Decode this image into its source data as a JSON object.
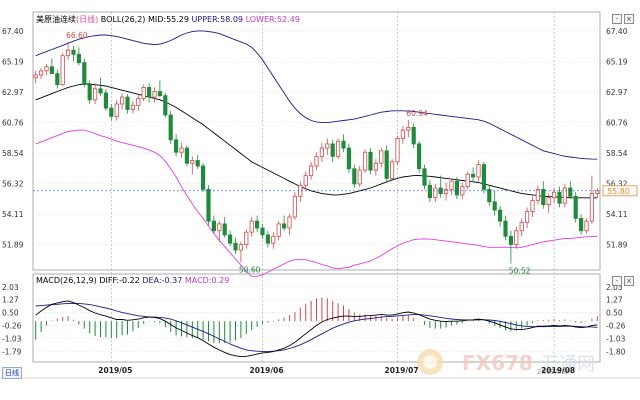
{
  "header": {
    "instrument": "美原油连续",
    "period": "(日线)",
    "indicator": "BOLL(26,2)",
    "mid": "MID:55.29",
    "upper": "UPPER:58.09",
    "lower": "LOWER:52.49"
  },
  "macd_header": {
    "indicator": "MACD(26,12,9)",
    "diff": "DIFF:-0.22",
    "dea": "DEA:-0.37",
    "macd": "MACD:0.29"
  },
  "controls": {
    "minus": "-",
    "close": "×",
    "period_button": "日线"
  },
  "current_price": "55.80",
  "watermark": {
    "brand": "FX678",
    "brand_cn": "汇通网",
    "date": "2019/08/"
  },
  "colors": {
    "up": "#d24a4a",
    "down": "#1e8a3a",
    "mid": "#000000",
    "upper": "#1a1a8c",
    "lower": "#e23ee2",
    "diff": "#000000",
    "dea": "#1a1a8c",
    "grid": "#b8b8b8"
  },
  "chart_data": {
    "type": "candlestick",
    "price_axis_ticks": [
      "67.40",
      "65.19",
      "62.97",
      "60.76",
      "58.54",
      "56.32",
      "54.11",
      "51.89"
    ],
    "macd_axis_ticks": [
      "2.03",
      "1.27",
      "0.50",
      "-0.26",
      "-1.03",
      "-1.79"
    ],
    "macd_axis_right": [
      "2.03",
      "1.27",
      "0.50",
      "-0.26",
      "-1.03",
      "-1.80"
    ],
    "x_labels": [
      "2019/05",
      "2019/06",
      "2019/07",
      "2019/08"
    ],
    "price_ylim": [
      50.2,
      67.9
    ],
    "macd_ylim": [
      -2.3,
      2.2
    ],
    "annotations": [
      {
        "text": "66.60",
        "index": 6,
        "price": 66.6,
        "pos": "above"
      },
      {
        "text": "50.60",
        "index": 38,
        "price": 50.6,
        "pos": "below"
      },
      {
        "text": "60.94",
        "index": 69,
        "price": 60.94,
        "pos": "above"
      },
      {
        "text": "50.52",
        "index": 88,
        "price": 50.52,
        "pos": "below"
      }
    ],
    "candles": [
      [
        64.0,
        64.5,
        63.6,
        64.2
      ],
      [
        64.2,
        64.7,
        63.9,
        64.5
      ],
      [
        64.5,
        65.0,
        64.2,
        64.8
      ],
      [
        64.8,
        65.4,
        64.4,
        64.3
      ],
      [
        64.3,
        64.6,
        63.2,
        63.5
      ],
      [
        63.5,
        65.8,
        63.4,
        65.6
      ],
      [
        65.6,
        66.6,
        65.3,
        66.0
      ],
      [
        66.0,
        66.3,
        65.2,
        65.7
      ],
      [
        65.7,
        66.2,
        64.9,
        65.1
      ],
      [
        65.1,
        65.4,
        63.3,
        63.5
      ],
      [
        63.5,
        63.8,
        62.1,
        62.4
      ],
      [
        62.4,
        63.6,
        62.1,
        63.2
      ],
      [
        63.2,
        64.0,
        62.7,
        62.9
      ],
      [
        62.9,
        63.2,
        61.6,
        61.8
      ],
      [
        61.8,
        62.1,
        60.9,
        61.2
      ],
      [
        61.2,
        62.4,
        60.9,
        62.1
      ],
      [
        62.1,
        62.9,
        61.7,
        62.6
      ],
      [
        62.6,
        62.8,
        61.4,
        61.7
      ],
      [
        61.7,
        62.3,
        61.4,
        62.0
      ],
      [
        62.0,
        62.8,
        61.6,
        62.5
      ],
      [
        62.5,
        63.5,
        62.3,
        63.3
      ],
      [
        63.3,
        63.6,
        62.2,
        62.6
      ],
      [
        62.6,
        63.3,
        62.2,
        63.0
      ],
      [
        63.0,
        63.8,
        62.6,
        62.7
      ],
      [
        62.7,
        62.9,
        61.1,
        61.3
      ],
      [
        61.3,
        61.6,
        59.2,
        59.5
      ],
      [
        59.5,
        59.9,
        58.3,
        58.6
      ],
      [
        58.6,
        59.3,
        58.2,
        58.9
      ],
      [
        58.9,
        59.1,
        57.6,
        57.8
      ],
      [
        57.8,
        58.3,
        57.0,
        58.0
      ],
      [
        58.0,
        58.4,
        57.4,
        57.6
      ],
      [
        57.6,
        57.8,
        55.7,
        55.9
      ],
      [
        55.9,
        56.2,
        53.3,
        53.6
      ],
      [
        53.6,
        54.0,
        52.7,
        52.9
      ],
      [
        52.9,
        53.6,
        52.1,
        53.4
      ],
      [
        53.4,
        53.9,
        52.4,
        52.6
      ],
      [
        52.6,
        52.9,
        51.8,
        52.0
      ],
      [
        52.0,
        52.4,
        51.2,
        51.5
      ],
      [
        51.5,
        52.1,
        50.6,
        51.9
      ],
      [
        51.9,
        53.0,
        51.6,
        52.8
      ],
      [
        52.8,
        53.9,
        52.5,
        53.6
      ],
      [
        53.6,
        54.0,
        52.8,
        53.1
      ],
      [
        53.1,
        53.4,
        52.3,
        52.6
      ],
      [
        52.6,
        52.9,
        51.7,
        52.0
      ],
      [
        52.0,
        52.8,
        51.6,
        52.5
      ],
      [
        52.5,
        53.6,
        52.2,
        53.4
      ],
      [
        53.4,
        54.0,
        52.9,
        53.1
      ],
      [
        53.1,
        54.1,
        52.6,
        53.9
      ],
      [
        53.9,
        55.7,
        53.7,
        55.4
      ],
      [
        55.4,
        56.5,
        55.0,
        56.2
      ],
      [
        56.2,
        57.2,
        55.9,
        56.9
      ],
      [
        56.9,
        57.9,
        56.6,
        57.6
      ],
      [
        57.6,
        58.6,
        57.3,
        58.3
      ],
      [
        58.3,
        59.3,
        57.9,
        58.9
      ],
      [
        58.9,
        59.6,
        58.4,
        59.2
      ],
      [
        59.2,
        59.5,
        57.9,
        58.3
      ],
      [
        58.3,
        59.6,
        58.1,
        59.4
      ],
      [
        59.4,
        59.9,
        58.6,
        58.9
      ],
      [
        58.9,
        59.2,
        57.1,
        57.4
      ],
      [
        57.4,
        57.7,
        56.0,
        56.3
      ],
      [
        56.3,
        57.6,
        56.1,
        57.3
      ],
      [
        57.3,
        58.8,
        57.1,
        58.6
      ],
      [
        58.6,
        58.9,
        57.0,
        57.3
      ],
      [
        57.3,
        58.1,
        56.9,
        57.8
      ],
      [
        57.8,
        58.9,
        57.5,
        58.7
      ],
      [
        58.7,
        59.1,
        56.4,
        56.7
      ],
      [
        56.7,
        58.1,
        56.5,
        57.9
      ],
      [
        57.9,
        59.8,
        57.7,
        59.6
      ],
      [
        59.6,
        60.5,
        59.2,
        60.2
      ],
      [
        60.2,
        60.94,
        59.7,
        60.4
      ],
      [
        60.4,
        60.7,
        58.9,
        59.2
      ],
      [
        59.2,
        59.4,
        57.1,
        57.4
      ],
      [
        57.4,
        57.7,
        55.9,
        56.2
      ],
      [
        56.2,
        56.6,
        55.0,
        55.3
      ],
      [
        55.3,
        56.3,
        55.0,
        56.0
      ],
      [
        56.0,
        56.9,
        55.3,
        55.6
      ],
      [
        55.6,
        56.4,
        55.1,
        55.9
      ],
      [
        55.9,
        56.7,
        55.5,
        56.5
      ],
      [
        56.5,
        56.8,
        55.2,
        55.5
      ],
      [
        55.5,
        56.4,
        55.2,
        56.1
      ],
      [
        56.1,
        57.2,
        55.9,
        57.0
      ],
      [
        57.0,
        57.5,
        56.4,
        56.8
      ],
      [
        56.8,
        58.0,
        56.5,
        57.7
      ],
      [
        57.7,
        57.9,
        55.6,
        55.9
      ],
      [
        55.9,
        56.2,
        54.7,
        55.0
      ],
      [
        55.0,
        55.8,
        54.0,
        54.4
      ],
      [
        54.4,
        54.7,
        53.2,
        53.6
      ],
      [
        53.6,
        54.0,
        52.2,
        52.5
      ],
      [
        52.5,
        52.9,
        50.52,
        51.9
      ],
      [
        51.9,
        53.2,
        51.6,
        52.9
      ],
      [
        52.9,
        53.8,
        52.5,
        53.5
      ],
      [
        53.5,
        54.6,
        53.1,
        54.3
      ],
      [
        54.3,
        55.4,
        53.9,
        55.1
      ],
      [
        55.1,
        56.2,
        54.8,
        55.9
      ],
      [
        55.9,
        56.5,
        54.5,
        54.8
      ],
      [
        54.8,
        55.6,
        54.2,
        55.3
      ],
      [
        55.3,
        56.0,
        54.9,
        55.7
      ],
      [
        55.7,
        56.1,
        54.6,
        54.9
      ],
      [
        54.9,
        56.3,
        54.6,
        56.0
      ],
      [
        56.0,
        56.5,
        55.2,
        55.4
      ],
      [
        55.4,
        55.7,
        53.5,
        53.8
      ],
      [
        53.8,
        54.1,
        52.6,
        52.9
      ],
      [
        52.9,
        53.8,
        52.7,
        53.6
      ],
      [
        53.6,
        56.9,
        53.4,
        55.6
      ],
      [
        55.6,
        56.0,
        55.3,
        55.8
      ]
    ],
    "series": [
      {
        "name": "MID",
        "values": [
          62.4,
          62.55,
          62.7,
          62.85,
          63.0,
          63.15,
          63.3,
          63.4,
          63.5,
          63.55,
          63.55,
          63.5,
          63.45,
          63.4,
          63.3,
          63.2,
          63.1,
          63.0,
          62.9,
          62.8,
          62.7,
          62.6,
          62.5,
          62.4,
          62.25,
          62.05,
          61.85,
          61.6,
          61.35,
          61.1,
          60.85,
          60.6,
          60.3,
          60.0,
          59.7,
          59.4,
          59.1,
          58.8,
          58.5,
          58.2,
          57.9,
          57.7,
          57.5,
          57.3,
          57.1,
          56.9,
          56.7,
          56.5,
          56.3,
          56.1,
          55.95,
          55.8,
          55.7,
          55.6,
          55.55,
          55.5,
          55.5,
          55.55,
          55.6,
          55.7,
          55.8,
          55.9,
          56.0,
          56.15,
          56.3,
          56.45,
          56.6,
          56.7,
          56.8,
          56.85,
          56.9,
          56.9,
          56.88,
          56.85,
          56.8,
          56.75,
          56.7,
          56.65,
          56.6,
          56.55,
          56.5,
          56.45,
          56.4,
          56.3,
          56.2,
          56.1,
          56.0,
          55.9,
          55.8,
          55.7,
          55.6,
          55.55,
          55.5,
          55.45,
          55.4,
          55.38,
          55.36,
          55.34,
          55.32,
          55.3,
          55.29,
          55.29,
          55.29,
          55.29,
          55.29
        ]
      },
      {
        "name": "UPPER",
        "values": [
          65.6,
          65.75,
          65.9,
          66.05,
          66.2,
          66.35,
          66.5,
          66.65,
          66.8,
          66.9,
          67.0,
          67.05,
          67.1,
          67.1,
          67.05,
          67.0,
          66.9,
          66.8,
          66.7,
          66.6,
          66.5,
          66.45,
          66.4,
          66.45,
          66.55,
          66.7,
          66.9,
          67.1,
          67.25,
          67.35,
          67.4,
          67.4,
          67.35,
          67.3,
          67.2,
          67.05,
          66.9,
          66.75,
          66.6,
          66.45,
          66.2,
          65.8,
          65.3,
          64.7,
          64.1,
          63.5,
          62.9,
          62.3,
          61.8,
          61.4,
          61.1,
          60.9,
          60.8,
          60.75,
          60.75,
          60.8,
          60.85,
          60.9,
          60.95,
          61.0,
          61.1,
          61.2,
          61.3,
          61.4,
          61.5,
          61.55,
          61.6,
          61.6,
          61.6,
          61.58,
          61.55,
          61.5,
          61.45,
          61.4,
          61.35,
          61.3,
          61.25,
          61.2,
          61.15,
          61.1,
          61.05,
          61.0,
          60.95,
          60.85,
          60.7,
          60.5,
          60.3,
          60.1,
          59.9,
          59.7,
          59.5,
          59.3,
          59.1,
          58.9,
          58.7,
          58.6,
          58.5,
          58.4,
          58.3,
          58.25,
          58.2,
          58.15,
          58.12,
          58.1,
          58.09
        ]
      },
      {
        "name": "LOWER",
        "values": [
          59.2,
          59.35,
          59.5,
          59.65,
          59.8,
          59.95,
          60.1,
          60.15,
          60.2,
          60.2,
          60.1,
          59.95,
          59.8,
          59.7,
          59.55,
          59.4,
          59.3,
          59.2,
          59.1,
          59.0,
          58.9,
          58.75,
          58.6,
          58.35,
          57.95,
          57.4,
          56.8,
          56.1,
          55.45,
          54.85,
          54.3,
          53.8,
          53.25,
          52.7,
          52.2,
          51.75,
          51.3,
          50.85,
          50.4,
          49.95,
          49.6,
          49.6,
          49.7,
          49.9,
          50.1,
          50.3,
          50.5,
          50.7,
          50.8,
          50.8,
          50.8,
          50.7,
          50.6,
          50.45,
          50.35,
          50.2,
          50.15,
          50.2,
          50.25,
          50.4,
          50.5,
          50.6,
          50.7,
          50.9,
          51.1,
          51.35,
          51.6,
          51.8,
          52.0,
          52.12,
          52.25,
          52.3,
          52.31,
          52.3,
          52.25,
          52.2,
          52.15,
          52.1,
          52.05,
          52.0,
          51.95,
          51.9,
          51.85,
          51.75,
          51.7,
          51.7,
          51.7,
          51.7,
          51.7,
          51.7,
          51.7,
          51.8,
          51.9,
          52.0,
          52.1,
          52.16,
          52.22,
          52.28,
          52.34,
          52.35,
          52.38,
          52.43,
          52.46,
          52.48,
          52.49
        ]
      }
    ],
    "macd": {
      "diff": [
        0.35,
        0.6,
        0.82,
        1.0,
        1.08,
        1.15,
        1.2,
        1.1,
        0.95,
        0.8,
        0.62,
        0.48,
        0.38,
        0.3,
        0.2,
        0.1,
        0.1,
        0.05,
        0.08,
        0.12,
        0.2,
        0.24,
        0.22,
        0.15,
        0.0,
        -0.2,
        -0.4,
        -0.55,
        -0.7,
        -0.85,
        -0.98,
        -1.15,
        -1.35,
        -1.55,
        -1.7,
        -1.85,
        -1.98,
        -2.05,
        -2.1,
        -2.08,
        -2.02,
        -1.95,
        -1.88,
        -1.85,
        -1.8,
        -1.7,
        -1.6,
        -1.45,
        -1.25,
        -1.0,
        -0.75,
        -0.5,
        -0.25,
        -0.05,
        0.1,
        0.18,
        0.25,
        0.3,
        0.3,
        0.27,
        0.28,
        0.32,
        0.33,
        0.36,
        0.4,
        0.36,
        0.36,
        0.42,
        0.5,
        0.54,
        0.48,
        0.38,
        0.25,
        0.12,
        0.05,
        0.0,
        -0.02,
        0.0,
        0.0,
        0.02,
        0.06,
        0.08,
        0.12,
        0.08,
        0.0,
        -0.1,
        -0.22,
        -0.35,
        -0.45,
        -0.5,
        -0.5,
        -0.45,
        -0.38,
        -0.3,
        -0.3,
        -0.28,
        -0.25,
        -0.28,
        -0.25,
        -0.28,
        -0.35,
        -0.38,
        -0.35,
        -0.26,
        -0.22
      ],
      "dea": [
        0.9,
        0.92,
        0.95,
        0.98,
        1.0,
        1.03,
        1.05,
        1.06,
        1.05,
        1.02,
        0.98,
        0.92,
        0.85,
        0.78,
        0.7,
        0.6,
        0.52,
        0.45,
        0.38,
        0.32,
        0.28,
        0.25,
        0.24,
        0.22,
        0.18,
        0.12,
        0.02,
        -0.1,
        -0.22,
        -0.35,
        -0.48,
        -0.6,
        -0.75,
        -0.9,
        -1.05,
        -1.2,
        -1.35,
        -1.48,
        -1.6,
        -1.7,
        -1.75,
        -1.78,
        -1.8,
        -1.8,
        -1.78,
        -1.75,
        -1.7,
        -1.62,
        -1.52,
        -1.4,
        -1.25,
        -1.1,
        -0.92,
        -0.75,
        -0.58,
        -0.42,
        -0.28,
        -0.16,
        -0.06,
        0.02,
        0.08,
        0.12,
        0.16,
        0.2,
        0.24,
        0.27,
        0.29,
        0.31,
        0.34,
        0.37,
        0.39,
        0.39,
        0.36,
        0.32,
        0.27,
        0.22,
        0.17,
        0.13,
        0.1,
        0.08,
        0.07,
        0.07,
        0.08,
        0.08,
        0.07,
        0.04,
        -0.01,
        -0.08,
        -0.15,
        -0.22,
        -0.28,
        -0.31,
        -0.33,
        -0.33,
        -0.33,
        -0.32,
        -0.31,
        -0.31,
        -0.3,
        -0.3,
        -0.31,
        -0.33,
        -0.34,
        -0.34,
        -0.37
      ]
    }
  }
}
